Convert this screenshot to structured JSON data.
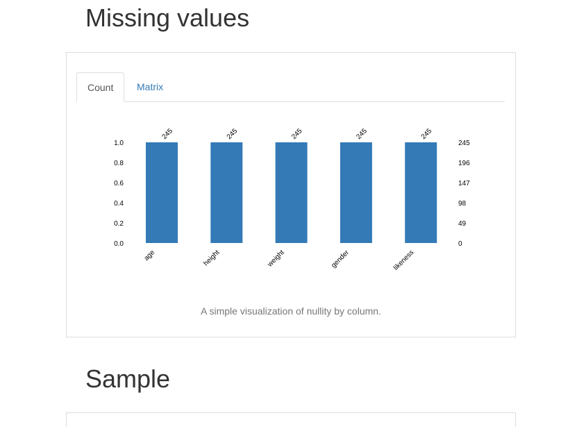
{
  "headings": {
    "missing_values": "Missing values",
    "sample": "Sample"
  },
  "tabs": [
    {
      "label": "Count",
      "active": true
    },
    {
      "label": "Matrix",
      "active": false
    }
  ],
  "caption": "A simple visualization of nullity by column.",
  "colors": {
    "bar": "#337ab7",
    "tab_link": "#337ab7"
  },
  "chart_data": {
    "type": "bar",
    "categories": [
      "age",
      "height",
      "weight",
      "gender",
      "likeness"
    ],
    "values": [
      1.0,
      1.0,
      1.0,
      1.0,
      1.0
    ],
    "counts": [
      245,
      245,
      245,
      245,
      245
    ],
    "bar_labels": [
      "245",
      "245",
      "245",
      "245",
      "245"
    ],
    "ylim": [
      0,
      1.0
    ],
    "left_ticks": [
      "0.0",
      "0.2",
      "0.4",
      "0.6",
      "0.8",
      "1.0"
    ],
    "right_ticks": [
      "0",
      "49",
      "98",
      "147",
      "196",
      "245"
    ],
    "grid": false
  }
}
